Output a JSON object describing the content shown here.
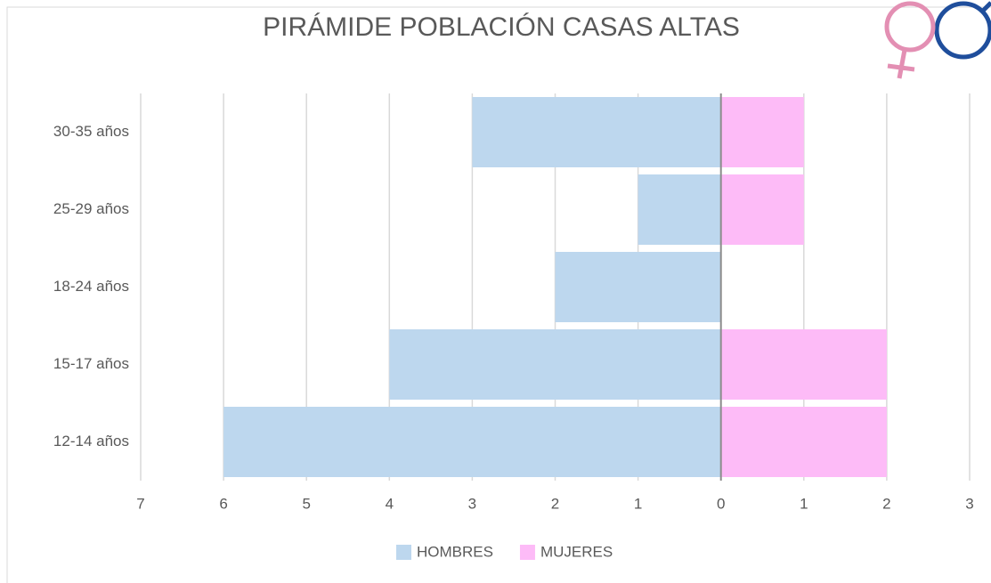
{
  "chart_data": {
    "type": "bar",
    "orientation": "horizontal",
    "stacked": true,
    "title": "PIRÁMIDE POBLACIÓN CASAS ALTAS",
    "categories": [
      "30-35 años",
      "25-29 años",
      "18-24 años",
      "15-17 años",
      "12-14 años"
    ],
    "series": [
      {
        "name": "HOMBRES",
        "color": "#bdd7ee",
        "values": [
          -3,
          -1,
          -2,
          -4,
          -6
        ]
      },
      {
        "name": "MUJERES",
        "color": "#fdbbf7",
        "values": [
          1,
          1,
          0,
          2,
          2
        ]
      }
    ],
    "xlim": [
      -7,
      3
    ],
    "xticks": [
      {
        "value": -7,
        "label": "7"
      },
      {
        "value": -6,
        "label": "6"
      },
      {
        "value": -5,
        "label": "5"
      },
      {
        "value": -4,
        "label": "4"
      },
      {
        "value": -3,
        "label": "3"
      },
      {
        "value": -2,
        "label": "2"
      },
      {
        "value": -1,
        "label": "1"
      },
      0,
      1,
      2,
      3
    ],
    "grid": true,
    "legend": "bottom"
  }
}
